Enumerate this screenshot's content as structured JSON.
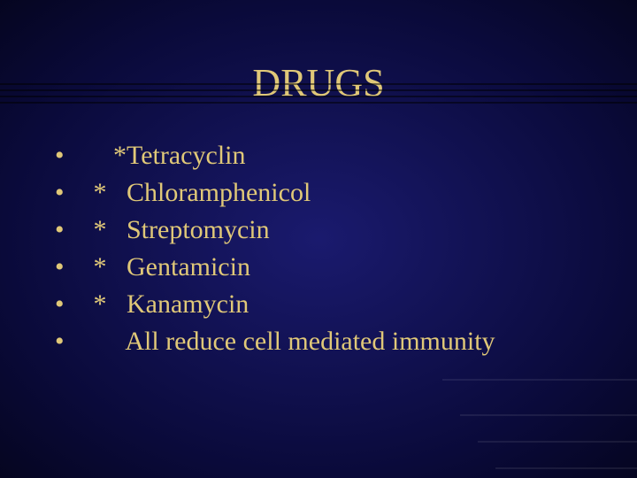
{
  "title": "DRUGS",
  "title_color": "#e0c878",
  "title_fontsize": 44,
  "text_color": "#e0c878",
  "text_fontsize": 30,
  "background_gradient": [
    "#1a1a6e",
    "#0a0a3a",
    "#050520"
  ],
  "font_family": "Times New Roman",
  "bullets": [
    {
      "marker": "•",
      "text": "    *Tetracyclin"
    },
    {
      "marker": "•",
      "text": " *   Chloramphenicol"
    },
    {
      "marker": "•",
      "text": " *   Streptomycin"
    },
    {
      "marker": "•",
      "text": " *   Gentamicin"
    },
    {
      "marker": "•",
      "text": " *   Kanamycin"
    },
    {
      "marker": "•",
      "text": "      All reduce cell mediated immunity"
    }
  ]
}
